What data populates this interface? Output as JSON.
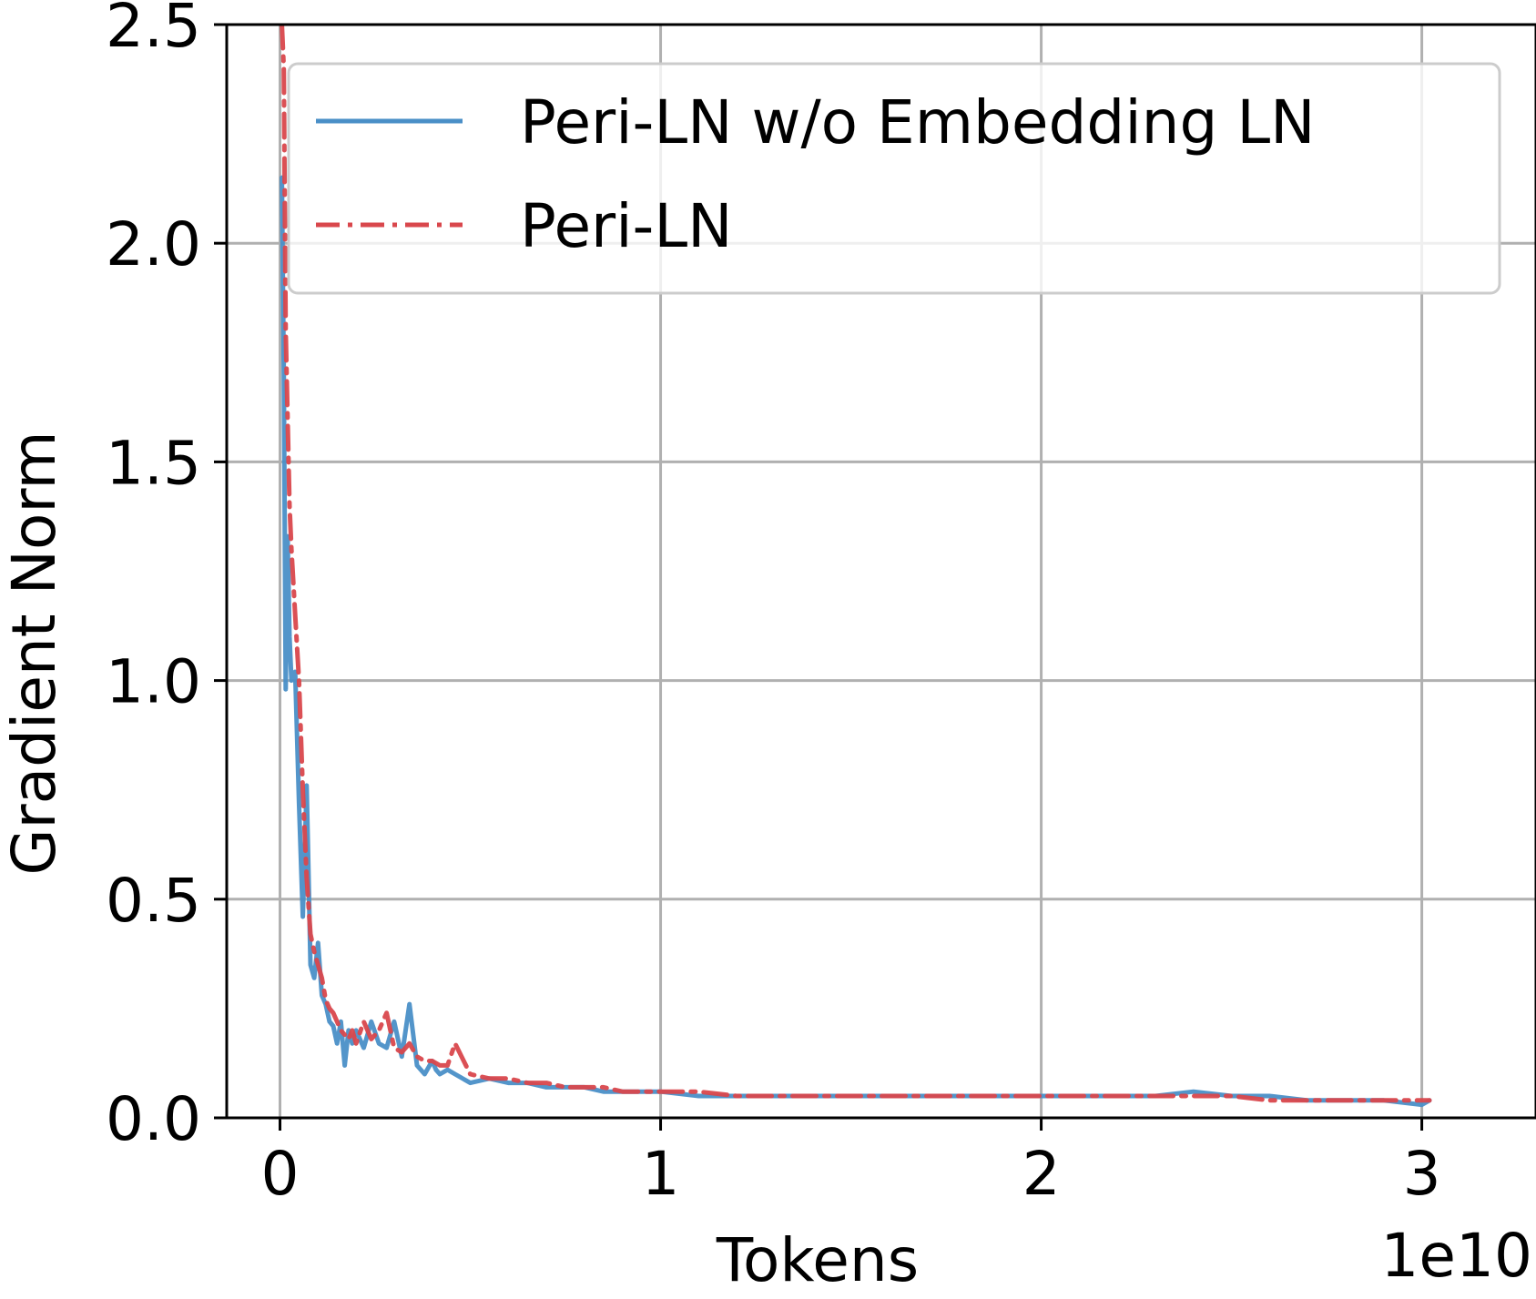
{
  "chart_data": {
    "type": "line",
    "title": "",
    "xlabel": "Tokens",
    "ylabel": "Gradient Norm",
    "x_offset_label": "1e10",
    "xlim": [
      -0.14,
      3.3
    ],
    "ylim": [
      0.0,
      2.5
    ],
    "x_ticks": [
      0,
      1,
      2,
      3
    ],
    "x_tick_labels": [
      "0",
      "1",
      "2",
      "3"
    ],
    "y_ticks": [
      0.0,
      0.5,
      1.0,
      1.5,
      2.0,
      2.5
    ],
    "y_tick_labels": [
      "0.0",
      "0.5",
      "1.0",
      "1.5",
      "2.0",
      "2.5"
    ],
    "grid": true,
    "legend_position": "top-right",
    "series": [
      {
        "name": "Peri-LN w/o Embedding LN",
        "color": "#4a8fc7",
        "style": "solid",
        "x": [
          0.005,
          0.01,
          0.015,
          0.02,
          0.025,
          0.03,
          0.04,
          0.05,
          0.06,
          0.07,
          0.08,
          0.09,
          0.1,
          0.11,
          0.12,
          0.13,
          0.14,
          0.15,
          0.16,
          0.17,
          0.18,
          0.19,
          0.2,
          0.22,
          0.24,
          0.26,
          0.28,
          0.3,
          0.32,
          0.34,
          0.36,
          0.38,
          0.4,
          0.41,
          0.42,
          0.44,
          0.46,
          0.5,
          0.55,
          0.6,
          0.65,
          0.7,
          0.75,
          0.8,
          0.85,
          0.9,
          0.95,
          1.0,
          1.1,
          1.2,
          1.3,
          1.4,
          1.5,
          1.6,
          1.7,
          1.8,
          1.9,
          2.0,
          2.1,
          2.2,
          2.3,
          2.4,
          2.5,
          2.6,
          2.7,
          2.8,
          2.9,
          3.0,
          3.02
        ],
        "values": [
          2.15,
          1.7,
          0.98,
          1.33,
          1.1,
          1.0,
          1.02,
          0.72,
          0.46,
          0.76,
          0.35,
          0.32,
          0.4,
          0.28,
          0.26,
          0.22,
          0.21,
          0.17,
          0.22,
          0.12,
          0.2,
          0.17,
          0.2,
          0.16,
          0.22,
          0.17,
          0.16,
          0.22,
          0.14,
          0.26,
          0.12,
          0.1,
          0.13,
          0.11,
          0.1,
          0.11,
          0.1,
          0.08,
          0.09,
          0.08,
          0.08,
          0.07,
          0.07,
          0.07,
          0.06,
          0.06,
          0.06,
          0.06,
          0.05,
          0.05,
          0.05,
          0.05,
          0.05,
          0.05,
          0.05,
          0.05,
          0.05,
          0.05,
          0.05,
          0.05,
          0.05,
          0.06,
          0.05,
          0.05,
          0.04,
          0.04,
          0.04,
          0.03,
          0.04
        ]
      },
      {
        "name": "Peri-LN",
        "color": "#d9474c",
        "style": "dashdot",
        "x": [
          0.005,
          0.01,
          0.015,
          0.02,
          0.025,
          0.03,
          0.04,
          0.05,
          0.06,
          0.07,
          0.08,
          0.09,
          0.1,
          0.11,
          0.12,
          0.13,
          0.14,
          0.15,
          0.16,
          0.17,
          0.18,
          0.19,
          0.2,
          0.22,
          0.24,
          0.26,
          0.28,
          0.3,
          0.32,
          0.34,
          0.36,
          0.38,
          0.4,
          0.42,
          0.44,
          0.46,
          0.5,
          0.55,
          0.6,
          0.65,
          0.7,
          0.75,
          0.8,
          0.85,
          0.9,
          0.95,
          1.0,
          1.1,
          1.2,
          1.3,
          1.4,
          1.5,
          1.6,
          1.7,
          1.8,
          1.9,
          2.0,
          2.1,
          2.2,
          2.3,
          2.4,
          2.5,
          2.6,
          2.7,
          2.8,
          2.9,
          3.0,
          3.02
        ],
        "values": [
          2.5,
          2.4,
          1.8,
          1.6,
          1.4,
          1.3,
          1.15,
          1.0,
          0.75,
          0.55,
          0.42,
          0.38,
          0.35,
          0.32,
          0.27,
          0.25,
          0.24,
          0.22,
          0.2,
          0.19,
          0.18,
          0.2,
          0.17,
          0.22,
          0.18,
          0.2,
          0.24,
          0.16,
          0.15,
          0.17,
          0.14,
          0.13,
          0.13,
          0.12,
          0.12,
          0.17,
          0.1,
          0.09,
          0.09,
          0.08,
          0.08,
          0.07,
          0.07,
          0.07,
          0.06,
          0.06,
          0.06,
          0.06,
          0.05,
          0.05,
          0.05,
          0.05,
          0.05,
          0.05,
          0.05,
          0.05,
          0.05,
          0.05,
          0.05,
          0.05,
          0.05,
          0.05,
          0.04,
          0.04,
          0.04,
          0.04,
          0.04,
          0.04
        ]
      }
    ]
  }
}
